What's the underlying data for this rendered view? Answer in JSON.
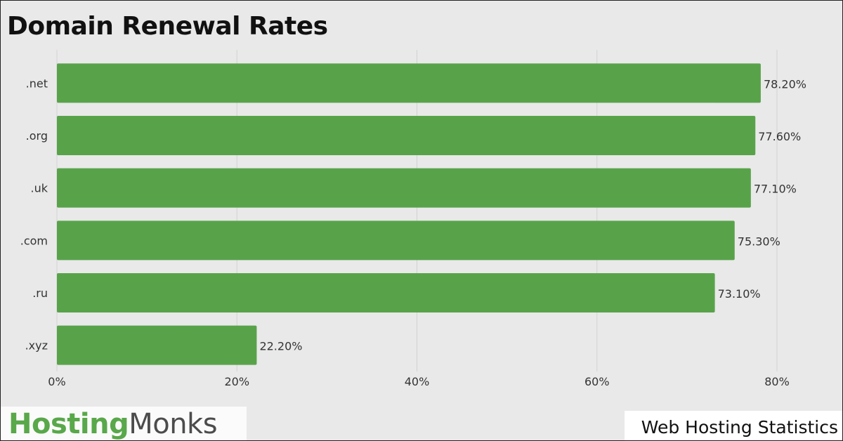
{
  "chart_data": {
    "type": "bar",
    "orientation": "horizontal",
    "title": "Domain Renewal Rates",
    "categories": [
      ".net",
      ".org",
      ".uk",
      ".com",
      ".ru",
      ".xyz"
    ],
    "values": [
      78.2,
      77.6,
      77.1,
      75.3,
      73.1,
      22.2
    ],
    "value_labels": [
      "78.20%",
      "77.60%",
      "77.10%",
      "75.30%",
      "73.10%",
      "22.20%"
    ],
    "xlim": [
      0,
      80
    ],
    "x_ticks": [
      0,
      20,
      40,
      60,
      80
    ],
    "x_tick_labels": [
      "0%",
      "20%",
      "40%",
      "60%",
      "80%"
    ],
    "grid": true,
    "bar_color": "#58a34a"
  },
  "branding": {
    "logo_part1": "Hosting",
    "logo_part2": "Monks",
    "logo_color_1": "#59a84a",
    "logo_color_2": "#4c4c4c"
  },
  "footer": {
    "text": "Web Hosting Statistics"
  }
}
